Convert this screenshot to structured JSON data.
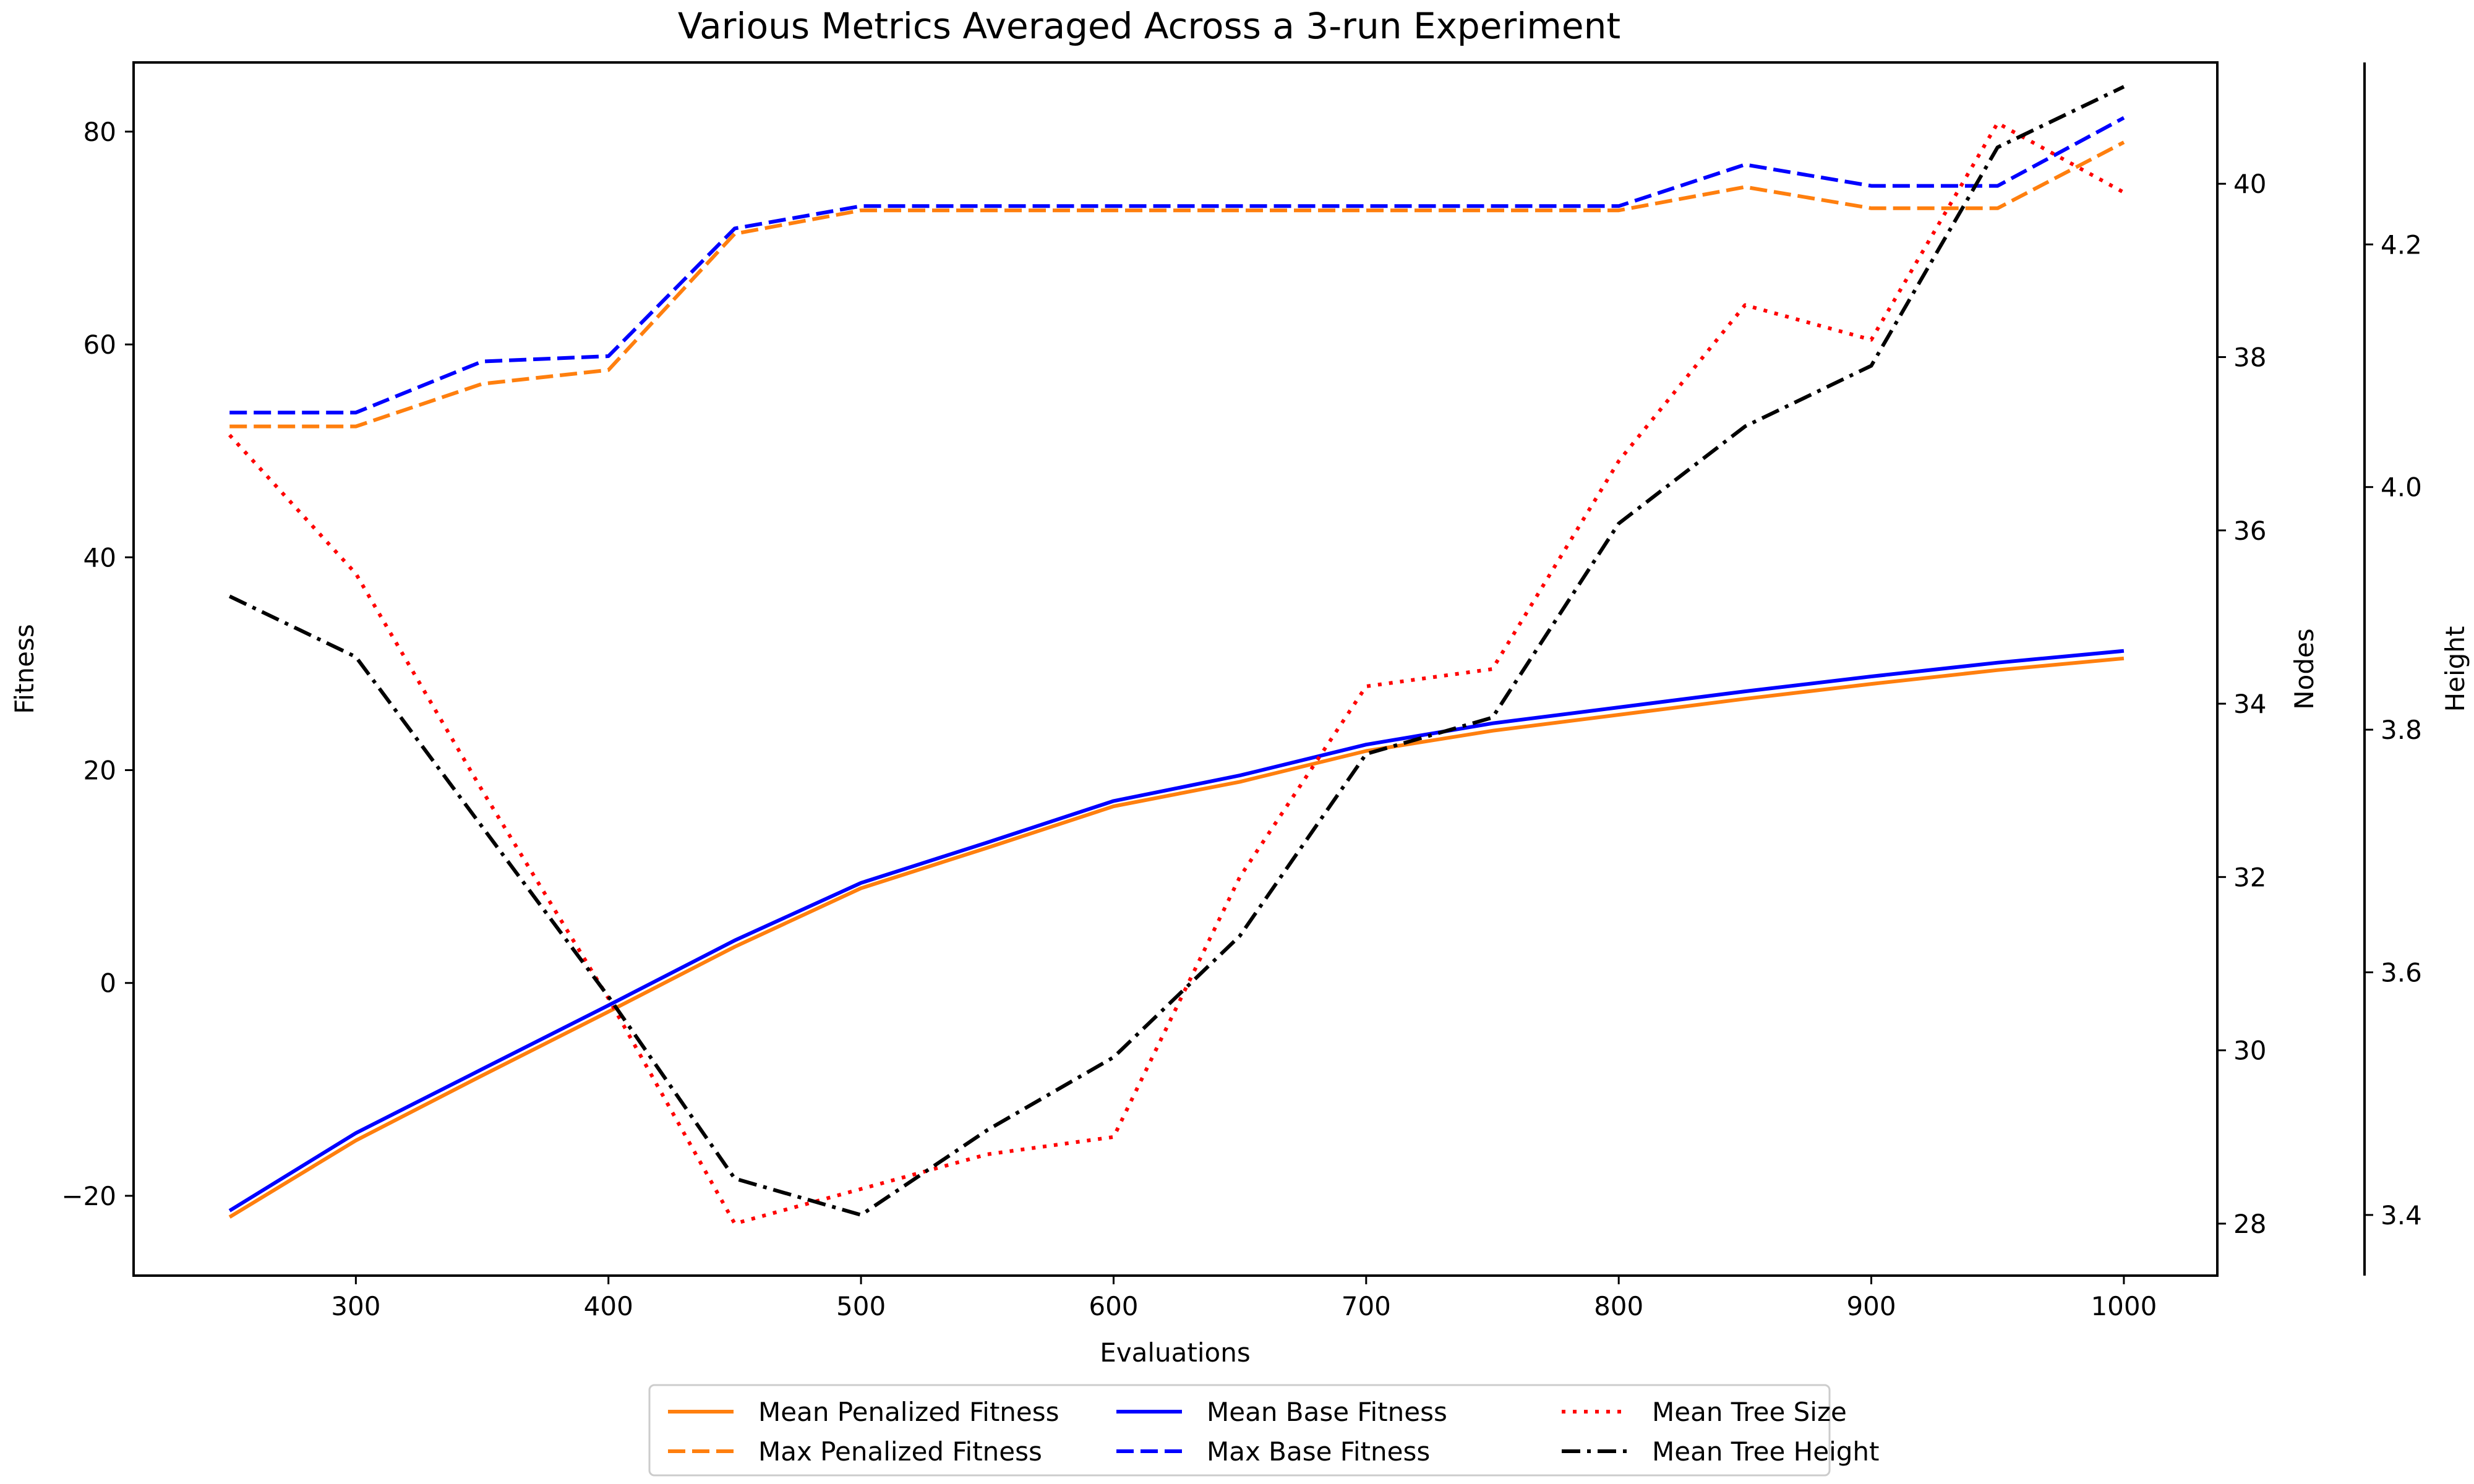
{
  "chart_data": {
    "type": "line",
    "title": "Various Metrics Averaged Across a 3-run Experiment",
    "xlabel": "Evaluations",
    "ylabel": "Fitness",
    "y2label": "Nodes",
    "y3label": "Height",
    "xlim": [
      212,
      1037
    ],
    "ylim": [
      -27.5,
      86.5
    ],
    "y2lim": [
      27.4,
      41.4
    ],
    "y3lim": [
      3.35,
      4.35
    ],
    "x_ticks": [
      300,
      400,
      500,
      600,
      700,
      800,
      900,
      1000
    ],
    "y_ticks": [
      -20,
      0,
      20,
      40,
      60,
      80
    ],
    "y2_ticks": [
      28,
      30,
      32,
      34,
      36,
      38,
      40
    ],
    "y3_ticks": [
      "3.4",
      "3.6",
      "3.8",
      "4.0",
      "4.2"
    ],
    "grid": false,
    "legend_position": "bottom-center",
    "x": [
      250,
      300,
      350,
      400,
      450,
      500,
      550,
      600,
      650,
      700,
      750,
      800,
      850,
      900,
      950,
      1000
    ],
    "series": [
      {
        "name": "Mean Penalized Fitness",
        "axis": "y",
        "color": "#ff7f0e",
        "style": "solid",
        "values": [
          -22.0,
          -14.8,
          -8.7,
          -2.7,
          3.4,
          8.9,
          12.7,
          16.6,
          18.9,
          21.8,
          23.7,
          25.2,
          26.7,
          28.1,
          29.4,
          30.5
        ]
      },
      {
        "name": "Max Penalized Fitness",
        "axis": "y",
        "color": "#ff7f0e",
        "style": "dashed",
        "values": [
          52.3,
          52.3,
          56.3,
          57.6,
          70.4,
          72.6,
          72.6,
          72.6,
          72.6,
          72.6,
          72.6,
          72.6,
          74.8,
          72.8,
          72.8,
          79.0
        ]
      },
      {
        "name": "Mean Base Fitness",
        "axis": "y",
        "color": "#0000ff",
        "style": "solid",
        "values": [
          -21.4,
          -14.1,
          -8.1,
          -2.1,
          4.0,
          9.4,
          13.2,
          17.1,
          19.5,
          22.4,
          24.4,
          25.9,
          27.4,
          28.8,
          30.1,
          31.2
        ]
      },
      {
        "name": "Max Base Fitness",
        "axis": "y",
        "color": "#0000ff",
        "style": "dashed",
        "values": [
          53.6,
          53.6,
          58.4,
          58.9,
          70.9,
          73.0,
          73.0,
          73.0,
          73.0,
          73.0,
          73.0,
          73.0,
          76.9,
          74.9,
          74.9,
          81.3
        ]
      },
      {
        "name": "Mean Tree Size",
        "axis": "y2",
        "color": "#ff0000",
        "style": "dotted",
        "values": [
          37.1,
          35.5,
          33.0,
          30.6,
          28.0,
          28.4,
          28.8,
          29.0,
          32.0,
          34.2,
          34.4,
          36.8,
          38.6,
          38.2,
          40.7,
          39.9
        ]
      },
      {
        "name": "Mean Tree Height",
        "axis": "y3",
        "color": "#000000",
        "style": "dashdot",
        "values": [
          3.91,
          3.86,
          3.72,
          3.58,
          3.43,
          3.4,
          3.47,
          3.53,
          3.63,
          3.78,
          3.81,
          3.97,
          4.05,
          4.1,
          4.28,
          4.33
        ]
      }
    ]
  }
}
